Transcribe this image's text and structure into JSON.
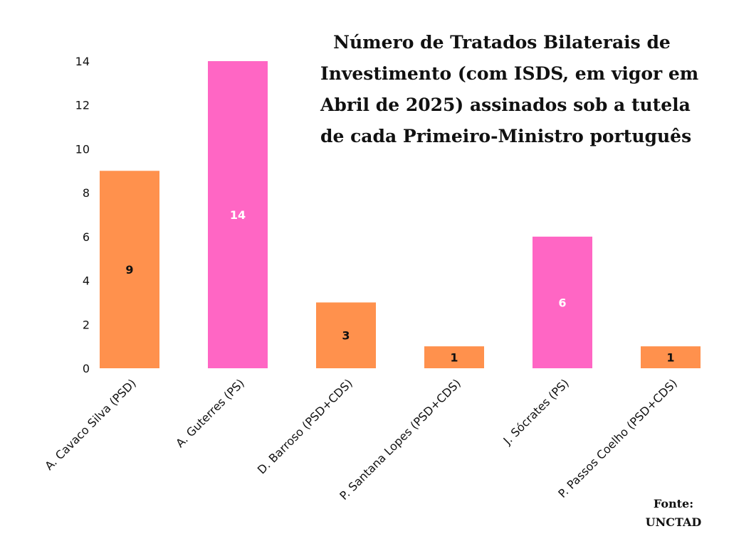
{
  "title_lines": [
    "Número de Tratados Bilaterais de",
    "Investimento (com ISDS, em vigor em",
    "Abril de 2025) assinados sob a tutela",
    "de cada Primeiro-Ministro português"
  ],
  "source_lines": [
    "Fonte:",
    "UNCTAD"
  ],
  "chart_data": {
    "type": "bar",
    "title": "Número de Tratados Bilaterais de Investimento (com ISDS, em vigor em Abril de 2025) assinados sob a tutela de cada Primeiro-Ministro português",
    "xlabel": "",
    "ylabel": "",
    "ylim": [
      0,
      14
    ],
    "yticks": [
      "0",
      "2",
      "4",
      "6",
      "8",
      "10",
      "12",
      "14"
    ],
    "grid": false,
    "legend": "none",
    "categories": [
      "A. Cavaco Silva (PSD)",
      "A. Guterres (PS)",
      "D. Barroso (PSD+CDS)",
      "P. Santana Lopes (PSD+CDS)",
      "J. Sócrates (PS)",
      "P. Passos Coelho (PSD+CDS)"
    ],
    "values": [
      9,
      14,
      3,
      1,
      6,
      1
    ],
    "data_labels": [
      "9",
      "14",
      "3",
      "1",
      "6",
      "1"
    ],
    "bar_colors": [
      "#ff914d",
      "#ff66c4",
      "#ff914d",
      "#ff914d",
      "#ff66c4",
      "#ff914d"
    ],
    "label_colors": [
      "#111111",
      "#ffffff",
      "#111111",
      "#111111",
      "#ffffff",
      "#111111"
    ]
  }
}
